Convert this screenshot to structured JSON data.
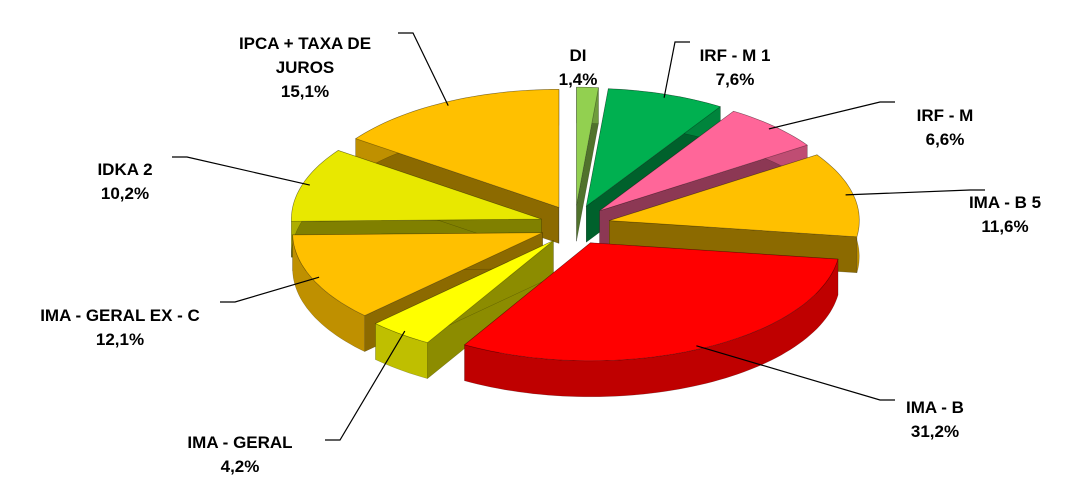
{
  "chart_data": {
    "type": "pie",
    "categories": [
      "DI",
      "IRF - M 1",
      "IRF - M",
      "IMA - B 5",
      "IMA - B",
      "IMA - GERAL",
      "IMA - GERAL EX - C",
      "IDKA 2",
      "IPCA + TAXA DE JUROS"
    ],
    "values": [
      1.4,
      7.6,
      6.6,
      11.6,
      31.2,
      4.2,
      12.1,
      10.2,
      15.1
    ],
    "value_labels": [
      "1,4%",
      "7,6%",
      "6,6%",
      "11,6%",
      "31,2%",
      "4,2%",
      "12,1%",
      "10,2%",
      "15,1%"
    ],
    "colors": [
      "#92d050",
      "#00b050",
      "#ff6699",
      "#ffc000",
      "#ff0000",
      "#ffff00",
      "#ffc000",
      "#e8e800",
      "#ffc000"
    ]
  }
}
